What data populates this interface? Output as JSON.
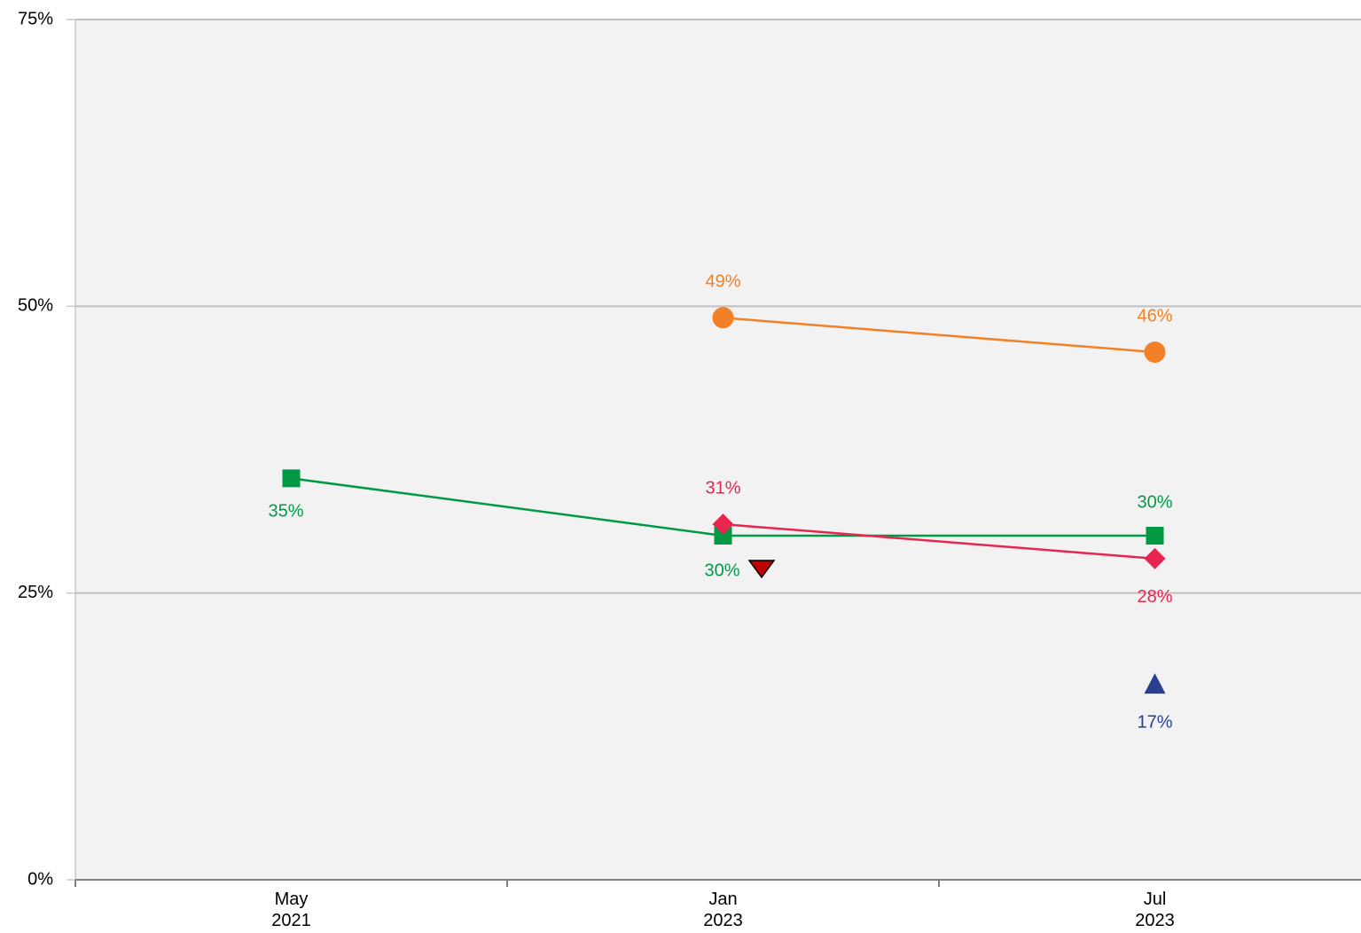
{
  "chart_data": {
    "type": "line",
    "categories": [
      "May 2021",
      "Jan 2023",
      "Jul 2023"
    ],
    "ylim": [
      0,
      75
    ],
    "yticks": [
      {
        "value": 0,
        "label": "0%"
      },
      {
        "value": 25,
        "label": "25%"
      },
      {
        "value": 50,
        "label": "50%"
      },
      {
        "value": 75,
        "label": "75%"
      }
    ],
    "grid": true,
    "series": [
      {
        "color": "#f28026",
        "marker": "circle",
        "line": true,
        "values": [
          null,
          49,
          46
        ],
        "value_labels": [
          null,
          "49%",
          "46%"
        ]
      },
      {
        "color": "#009a44",
        "marker": "square",
        "line": true,
        "values": [
          35,
          30,
          30
        ],
        "value_labels": [
          "35%",
          "30%",
          "30%"
        ]
      },
      {
        "color": "#e8254f",
        "marker": "diamond",
        "line": true,
        "values": [
          null,
          31,
          28
        ],
        "value_labels": [
          null,
          "31%",
          "28%"
        ]
      },
      {
        "color": "#2a3f92",
        "marker": "triangle",
        "line": false,
        "values": [
          null,
          null,
          17
        ],
        "value_labels": [
          null,
          null,
          "17%"
        ]
      }
    ]
  }
}
